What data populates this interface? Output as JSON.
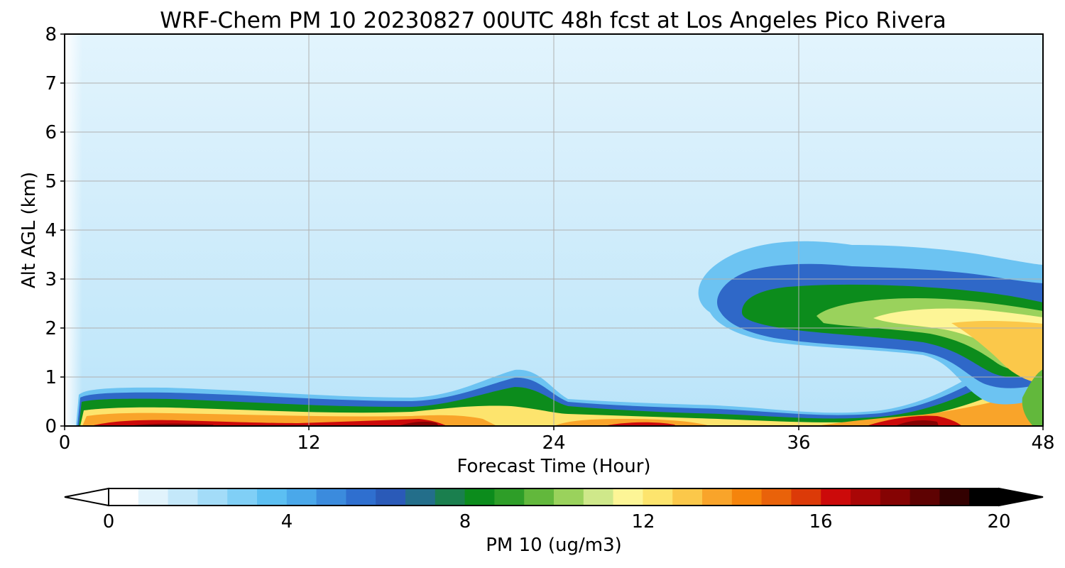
{
  "chart_data": {
    "type": "heatmap",
    "title": "WRF-Chem PM 10  20230827 00UTC 48h fcst at Los Angeles Pico Rivera",
    "xlabel": "Forecast Time (Hour)",
    "ylabel": "Alt AGL (km)",
    "xlim": [
      0,
      48
    ],
    "ylim": [
      0,
      8
    ],
    "x_ticks": [
      "0",
      "12",
      "24",
      "36",
      "48"
    ],
    "y_ticks": [
      "0",
      "1",
      "2",
      "3",
      "4",
      "5",
      "6",
      "7",
      "8"
    ],
    "grid": true,
    "colorbar": {
      "label": "PM 10  (ug/m3)",
      "min": 0,
      "max": 20,
      "ticks": [
        "0",
        "4",
        "8",
        "12",
        "16",
        "20"
      ],
      "extend": "both",
      "colors": [
        "#ffffff",
        "#e1f3fc",
        "#c4e8fa",
        "#a3dcf8",
        "#80cff6",
        "#5cbff2",
        "#4aa8ea",
        "#3b8bdd",
        "#2f6fcf",
        "#2a5ab8",
        "#236e8a",
        "#1a7f4e",
        "#0c8c1c",
        "#2e9e28",
        "#62b83c",
        "#9ad25c",
        "#cfe88a",
        "#fdf596",
        "#fde46d",
        "#fbc84a",
        "#f9a42a",
        "#f5840c",
        "#e9620a",
        "#dc3a08",
        "#cc0a0a",
        "#a90606",
        "#850303",
        "#5e0202",
        "#330101",
        "#000000"
      ]
    },
    "bands": [
      {
        "name": "surface_max",
        "x": [
          0.5,
          4,
          10,
          15,
          17,
          20,
          22,
          25,
          28,
          31,
          35,
          38,
          41,
          43,
          45,
          48
        ],
        "y": [
          0.08,
          0.1,
          0.08,
          0.07,
          0.1,
          0.06,
          0.05,
          0.07,
          0.09,
          0.06,
          0.04,
          0.06,
          0.12,
          0.1,
          0.06,
          0.05
        ]
      },
      {
        "name": "lower_layer_top",
        "x": [
          0.5,
          1,
          5,
          10,
          15,
          18,
          20,
          22,
          23,
          25,
          30,
          35,
          38,
          42,
          44,
          46,
          48
        ],
        "y": [
          0,
          0.65,
          0.7,
          0.6,
          0.5,
          0.55,
          0.75,
          1.0,
          0.95,
          0.55,
          0.45,
          0.35,
          0.25,
          0.3,
          0.6,
          0.9,
          1.4
        ]
      },
      {
        "name": "elevated_plume_top",
        "x": [
          33,
          34,
          36,
          38,
          40,
          42,
          44,
          46,
          48
        ],
        "y": [
          2.3,
          2.7,
          3.1,
          3.3,
          3.2,
          3.2,
          3.1,
          2.9,
          2.8
        ]
      },
      {
        "name": "elevated_plume_bottom",
        "x": [
          33,
          34,
          36,
          38,
          40,
          42,
          44,
          46,
          48
        ],
        "y": [
          2.0,
          1.9,
          1.7,
          1.6,
          1.5,
          1.35,
          1.1,
          1.0,
          0.9
        ]
      }
    ]
  }
}
